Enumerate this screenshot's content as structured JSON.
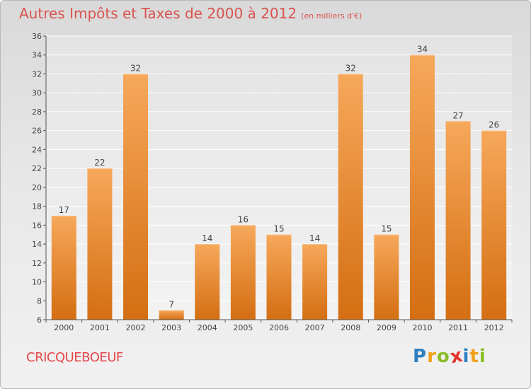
{
  "title": "Autres Impôts et Taxes de 2000 à 2012",
  "subtitle": "(en milliers d'€)",
  "place": "CRICQUEBOEUF",
  "brand": {
    "letters": [
      "P",
      "r",
      "o",
      "x",
      "i",
      "t",
      "i"
    ],
    "colors": [
      "#2f7fc1",
      "#f0a21a",
      "#8bbd26",
      "#e2352b",
      "#2f7fc1",
      "#f0a21a",
      "#8bbd26"
    ]
  },
  "colors": {
    "bar_top": "#f6a85a",
    "bar_bottom": "#d46e12",
    "axis": "#555555",
    "grid": "#ffffff",
    "plot_bg_top": "#e3e3e3",
    "plot_bg_bottom": "#f3f3f3",
    "title": "#d9534f"
  },
  "chart_data": {
    "type": "bar",
    "categories": [
      "2000",
      "2001",
      "2002",
      "2003",
      "2004",
      "2005",
      "2006",
      "2007",
      "2008",
      "2009",
      "2010",
      "2011",
      "2012"
    ],
    "values": [
      17,
      22,
      32,
      7,
      14,
      16,
      15,
      14,
      32,
      15,
      34,
      27,
      26
    ],
    "ylim": [
      6,
      36
    ],
    "yticks": [
      6,
      8,
      10,
      12,
      14,
      16,
      18,
      20,
      22,
      24,
      26,
      28,
      30,
      32,
      34,
      36
    ],
    "grid": true,
    "data_labels": true
  }
}
